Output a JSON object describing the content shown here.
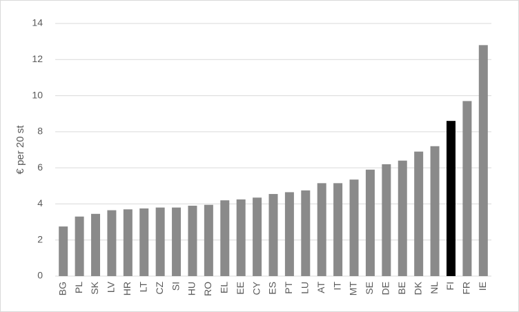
{
  "chart_data": {
    "type": "bar",
    "y_label": "€ per 20 st",
    "categories": [
      "BG",
      "PL",
      "SK",
      "LV",
      "HR",
      "LT",
      "CZ",
      "SI",
      "HU",
      "RO",
      "EL",
      "EE",
      "CY",
      "ES",
      "PT",
      "LU",
      "AT",
      "IT",
      "MT",
      "SE",
      "DE",
      "BE",
      "DK",
      "NL",
      "FI",
      "FR",
      "IE"
    ],
    "values": [
      2.75,
      3.3,
      3.45,
      3.65,
      3.7,
      3.75,
      3.8,
      3.8,
      3.9,
      3.95,
      4.2,
      4.25,
      4.35,
      4.55,
      4.65,
      4.75,
      5.15,
      5.15,
      5.35,
      5.9,
      6.2,
      6.4,
      6.9,
      7.2,
      8.6,
      9.7,
      12.8
    ],
    "colors": [
      "#8a8a8a",
      "#8a8a8a",
      "#8a8a8a",
      "#8a8a8a",
      "#8a8a8a",
      "#8a8a8a",
      "#8a8a8a",
      "#8a8a8a",
      "#8a8a8a",
      "#8a8a8a",
      "#8a8a8a",
      "#8a8a8a",
      "#8a8a8a",
      "#8a8a8a",
      "#8a8a8a",
      "#8a8a8a",
      "#8a8a8a",
      "#8a8a8a",
      "#8a8a8a",
      "#8a8a8a",
      "#8a8a8a",
      "#8a8a8a",
      "#8a8a8a",
      "#8a8a8a",
      "#000000",
      "#8a8a8a",
      "#8a8a8a"
    ],
    "ylim": [
      0,
      14
    ],
    "yticks": [
      0,
      2,
      4,
      6,
      8,
      10,
      12,
      14
    ],
    "grid": true
  }
}
